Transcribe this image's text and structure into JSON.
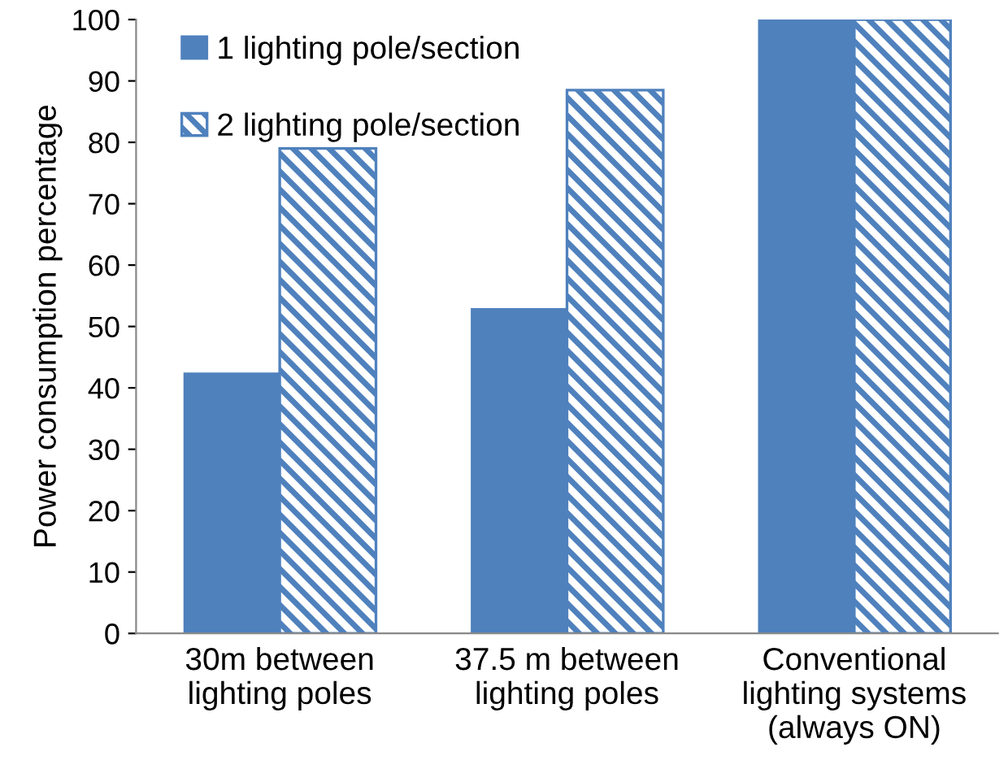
{
  "chart_data": {
    "type": "bar",
    "ylabel": "Power consumption percentage",
    "categories": [
      "30m between\nlighting poles",
      "37.5 m between\nlighting poles",
      "Conventional\nlighting systems\n(always ON)"
    ],
    "series": [
      {
        "name": "1 lighting pole/section",
        "color": "#4f81bd",
        "values": [
          42.5,
          53,
          100
        ]
      },
      {
        "name": "2 lighting pole/section",
        "color": "#4f81bd",
        "values": [
          79,
          88.5,
          100
        ]
      }
    ],
    "ylim": [
      0,
      100
    ],
    "yticks": [
      0,
      10,
      20,
      30,
      40,
      50,
      60,
      70,
      80,
      90,
      100
    ],
    "grid": false,
    "legend": "top left"
  }
}
